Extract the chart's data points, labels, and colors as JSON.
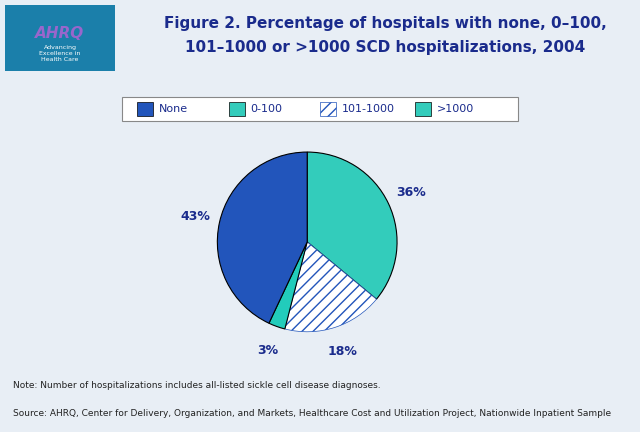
{
  "title_line1": "Figure 2. Percentage of hospitals with none, 0–100,",
  "title_line2": "101–1000 or >1000 SCD hospitalizations, 2004",
  "slices": [
    43,
    3,
    18,
    36
  ],
  "labels": [
    "None",
    "0-100",
    "101-1000",
    ">1000"
  ],
  "pct_labels": [
    "43%",
    "3%",
    "18%",
    "36%"
  ],
  "slice_colors": [
    "#2255BB",
    "#33CCBB",
    "#4488CC",
    "#22CCCC"
  ],
  "hatch": [
    null,
    null,
    "///",
    null
  ],
  "note1": "Note: Number of hospitalizations includes all-listed sickle cell disease diagnoses.",
  "note2": "Source: AHRQ, Center for Delivery, Organization, and Markets, Healthcare Cost and Utilization Project, Nationwide Inpatient Sample",
  "bg_color": "#E8EEF5",
  "header_bg": "#FFFFFF",
  "title_color": "#1A2B8C",
  "dark_blue": "#1A237E",
  "note_color": "#222222",
  "label_color": "#1A2B8C",
  "legend_colors": [
    "#2255BB",
    "#33CCBB",
    "#4488CC",
    "#22CCCC"
  ],
  "legend_hatches": [
    null,
    null,
    "///",
    null
  ]
}
